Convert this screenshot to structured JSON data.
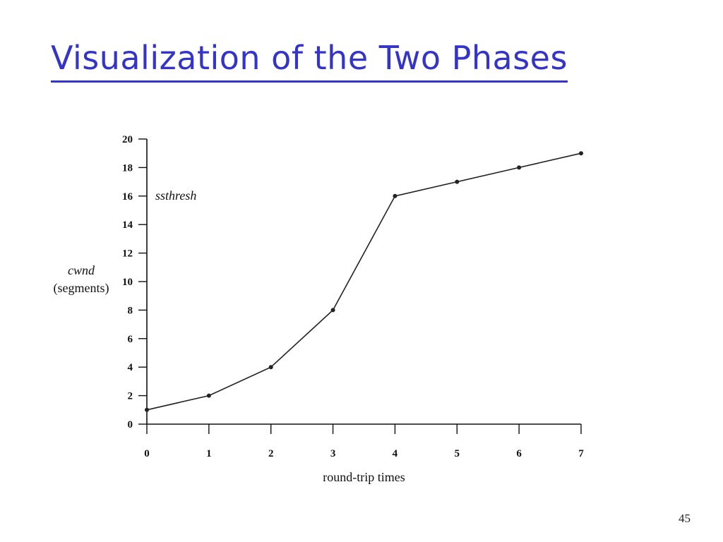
{
  "slide": {
    "title": "Visualization of the Two Phases",
    "page_number": "45"
  },
  "chart_data": {
    "type": "line",
    "title": "",
    "xlabel": "round-trip times",
    "ylabel_line1": "cwnd",
    "ylabel_line2": "(segments)",
    "x": [
      0,
      1,
      2,
      3,
      4,
      5,
      6,
      7
    ],
    "series": [
      {
        "values": [
          1,
          2,
          4,
          8,
          16,
          17,
          18,
          19
        ]
      }
    ],
    "xlim": [
      0,
      7
    ],
    "ylim": [
      0,
      20
    ],
    "x_ticks": [
      0,
      1,
      2,
      3,
      4,
      5,
      6,
      7
    ],
    "y_ticks": [
      0,
      2,
      4,
      6,
      8,
      10,
      12,
      14,
      16,
      18,
      20
    ],
    "annotations": [
      {
        "text": "ssthresh",
        "y": 16
      }
    ],
    "grid": false,
    "colors": {
      "line": "#222222",
      "axis": "#111111",
      "title": "#3434c8"
    }
  }
}
